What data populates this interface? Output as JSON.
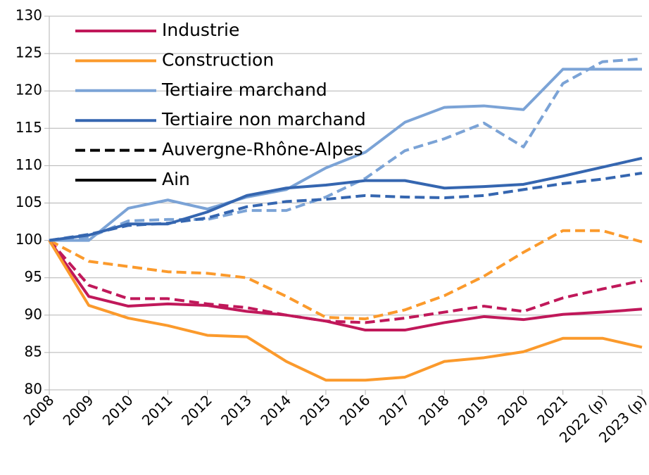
{
  "chart_data": {
    "type": "line",
    "categories": [
      "2008",
      "2009",
      "2010",
      "2011",
      "2012",
      "2013",
      "2014",
      "2015",
      "2016",
      "2017",
      "2018",
      "2019",
      "2020",
      "2021",
      "2022 (p)",
      "2023 (p)"
    ],
    "series": [
      {
        "name": "Industrie",
        "color": "#c0185a",
        "values": [
          100,
          92.5,
          91.2,
          91.5,
          91.3,
          90.5,
          90,
          89.2,
          88,
          88,
          89,
          89.8,
          89.4,
          90.1,
          90.4,
          90.8
        ],
        "dashed": [
          100,
          94,
          92.2,
          92.2,
          91.5,
          91,
          90,
          89.2,
          89,
          89.6,
          90.4,
          91.2,
          90.5,
          92.3,
          93.5,
          94.6
        ]
      },
      {
        "name": "Construction",
        "color": "#fb9a2c",
        "values": [
          100,
          91.3,
          89.6,
          88.6,
          87.3,
          87.1,
          83.8,
          81.3,
          81.3,
          81.7,
          83.8,
          84.3,
          85.1,
          86.9,
          86.9,
          85.7
        ],
        "dashed": [
          100,
          97.2,
          96.5,
          95.8,
          95.6,
          95,
          92.5,
          89.7,
          89.5,
          90.7,
          92.6,
          95.2,
          98.4,
          101.3,
          101.3,
          99.8
        ]
      },
      {
        "name": "Tertiaire marchand",
        "color": "#7ba3d6",
        "values": [
          100,
          100,
          104.3,
          105.4,
          104.2,
          105.8,
          106.8,
          109.7,
          111.8,
          115.8,
          117.8,
          118,
          117.5,
          122.9,
          122.9,
          122.9
        ],
        "dashed": [
          100,
          100.4,
          102.6,
          102.8,
          102.8,
          104,
          104,
          105.8,
          108.3,
          112,
          113.6,
          115.7,
          112.5,
          121,
          123.9,
          124.3
        ]
      },
      {
        "name": "Tertiaire non marchand",
        "color": "#3566b0",
        "values": [
          100,
          100.7,
          102.2,
          102.2,
          103.8,
          106,
          107,
          107.4,
          108,
          108,
          107,
          107.2,
          107.5,
          108.6,
          109.8,
          111
        ],
        "dashed": [
          100,
          100.8,
          102,
          102.3,
          103,
          104.5,
          105.2,
          105.5,
          106,
          105.8,
          105.7,
          106,
          106.8,
          107.6,
          108.2,
          109
        ]
      }
    ],
    "line_styles": [
      {
        "name": "Auvergne-Rhône-Alpes",
        "dashed": true
      },
      {
        "name": "Ain",
        "dashed": false
      }
    ],
    "ylim": [
      80,
      130
    ],
    "yticks": [
      80,
      85,
      90,
      95,
      100,
      105,
      110,
      115,
      120,
      125,
      130
    ],
    "grid": true
  }
}
